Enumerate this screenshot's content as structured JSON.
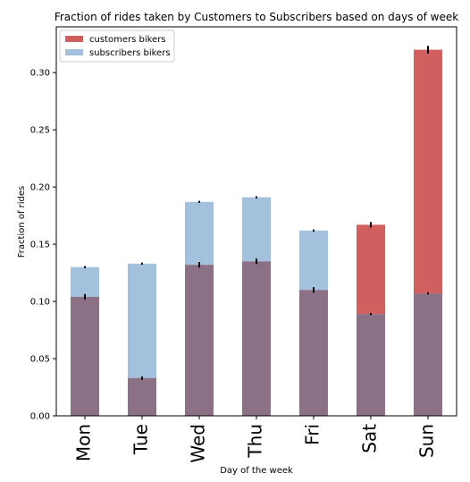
{
  "chart_data": {
    "type": "bar",
    "title": "Fraction of rides taken by Customers to Subscribers based on days of week",
    "xlabel": "Day of the week",
    "ylabel": "Fraction of rides",
    "categories": [
      "Mon",
      "Tue",
      "Wed",
      "Thu",
      "Fri",
      "Sat",
      "Sun"
    ],
    "ylim": [
      0,
      0.34
    ],
    "yticks": [
      "0.00",
      "0.05",
      "0.10",
      "0.15",
      "0.20",
      "0.25",
      "0.30"
    ],
    "legend_position": "top-left",
    "grid": false,
    "series": [
      {
        "name": "customers bikers",
        "color": "#d05f5f",
        "values": [
          0.104,
          0.033,
          0.132,
          0.135,
          0.11,
          0.167,
          0.32
        ],
        "error": [
          0.002,
          0.001,
          0.002,
          0.002,
          0.002,
          0.002,
          0.003
        ]
      },
      {
        "name": "subscribers bikers",
        "color": "#a3c0dc",
        "values": [
          0.13,
          0.133,
          0.187,
          0.191,
          0.162,
          0.089,
          0.107
        ],
        "error": [
          0.0005,
          0.0005,
          0.0005,
          0.0005,
          0.0005,
          0.0005,
          0.0005
        ]
      }
    ],
    "overlap_color": "#8b7086"
  }
}
